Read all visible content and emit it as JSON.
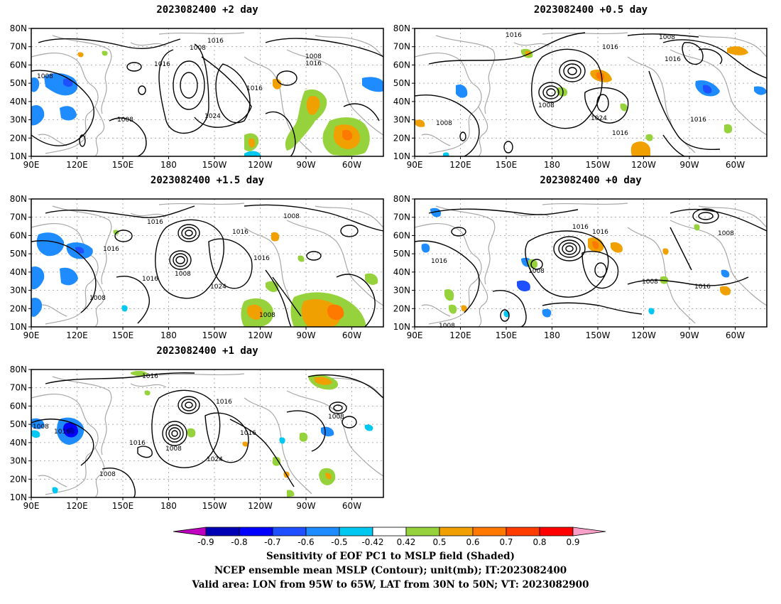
{
  "panels": [
    {
      "title": "2023082400 +2 day"
    },
    {
      "title": "2023082400 +0.5 day"
    },
    {
      "title": "2023082400 +1.5 day"
    },
    {
      "title": "2023082400 +0 day"
    },
    {
      "title": "2023082400 +1 day"
    }
  ],
  "axes": {
    "lat_labels": [
      "80N",
      "70N",
      "60N",
      "50N",
      "40N",
      "30N",
      "20N",
      "10N"
    ],
    "lon_labels": [
      "90E",
      "120E",
      "150E",
      "180",
      "150W",
      "120W",
      "90W",
      "60W"
    ]
  },
  "contour_labels": {
    "p1": [
      "1016",
      "1008",
      "1016",
      "1008",
      "1016",
      "1024",
      "1008",
      "1008",
      "1016"
    ],
    "p2": [
      "1016",
      "1008",
      "1016",
      "1016",
      "1008",
      "1024",
      "1016",
      "1008",
      "1016"
    ],
    "p3": [
      "1016",
      "1008",
      "1016",
      "1016",
      "1008",
      "1024",
      "1016",
      "1008",
      "1008",
      "1016"
    ],
    "p4": [
      "1016",
      "1008",
      "1016",
      "1016",
      "1008",
      "1008",
      "1016",
      "1008"
    ],
    "p5": [
      "1016",
      "1016",
      "1008",
      "1016",
      "1008",
      "1024",
      "1016",
      "1008",
      "1016",
      "1008"
    ]
  },
  "colorbar": {
    "ticks": [
      "-0.9",
      "-0.8",
      "-0.7",
      "-0.6",
      "-0.5",
      "-0.42",
      "0.42",
      "0.5",
      "0.6",
      "0.7",
      "0.8",
      "0.9"
    ],
    "colors": [
      "#c000c0",
      "#0000b4",
      "#0000ff",
      "#1e50ff",
      "#1e8cff",
      "#00c8f0",
      "#ffffff",
      "#96d23c",
      "#f0a000",
      "#ff7800",
      "#ff3c00",
      "#ff0000",
      "#f8a0c8"
    ]
  },
  "caption": {
    "line1": "Sensitivity of EOF PC1 to MSLP field (Shaded)",
    "line2": "NCEP ensemble mean MSLP (Contour); unit(mb); IT:2023082400",
    "line3": "Valid area: LON from 95W to 65W, LAT from 30N to 50N; VT: 2023082900"
  }
}
